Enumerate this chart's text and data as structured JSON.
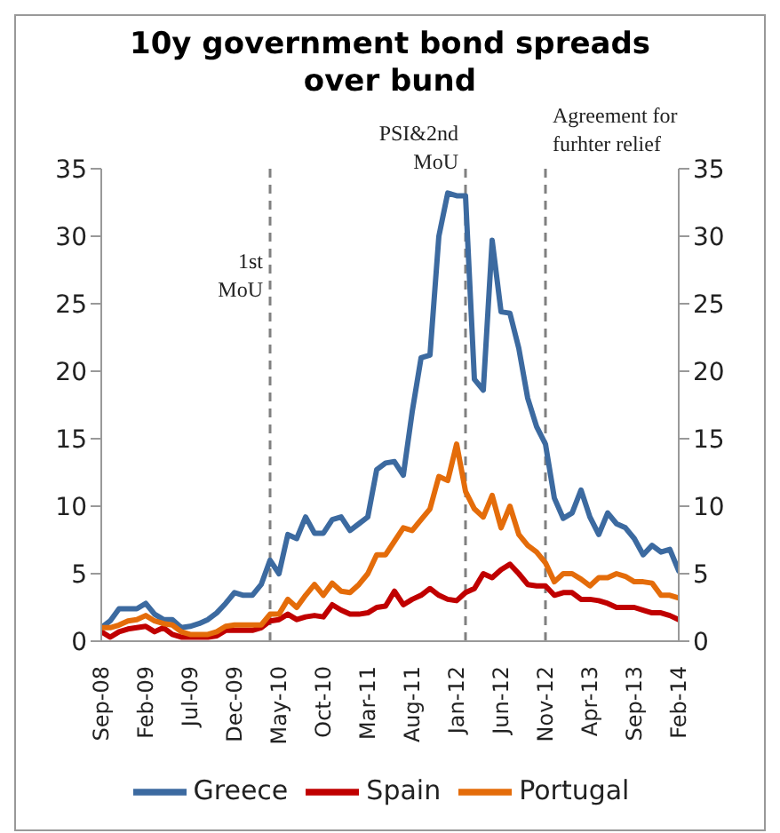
{
  "chart_data": {
    "type": "line",
    "title": "10y government bond spreads over bund",
    "x": [
      "2008-09",
      "2008-10",
      "2008-11",
      "2008-12",
      "2009-01",
      "2009-02",
      "2009-03",
      "2009-04",
      "2009-05",
      "2009-06",
      "2009-07",
      "2009-08",
      "2009-09",
      "2009-10",
      "2009-11",
      "2009-12",
      "2010-01",
      "2010-02",
      "2010-03",
      "2010-04",
      "2010-05",
      "2010-06",
      "2010-07",
      "2010-08",
      "2010-09",
      "2010-10",
      "2010-11",
      "2010-12",
      "2011-01",
      "2011-02",
      "2011-03",
      "2011-04",
      "2011-05",
      "2011-06",
      "2011-07",
      "2011-08",
      "2011-09",
      "2011-10",
      "2011-11",
      "2011-12",
      "2012-01",
      "2012-02",
      "2012-03",
      "2012-04",
      "2012-05",
      "2012-06",
      "2012-07",
      "2012-08",
      "2012-09",
      "2012-10",
      "2012-11",
      "2012-12",
      "2013-01",
      "2013-02",
      "2013-03",
      "2013-04",
      "2013-05",
      "2013-06",
      "2013-07",
      "2013-08",
      "2013-09",
      "2013-10",
      "2013-11",
      "2013-12",
      "2014-01",
      "2014-02"
    ],
    "series": [
      {
        "name": "Greece",
        "color": "#3c6aa0",
        "values": [
          1,
          1.5,
          2.4,
          2.4,
          2.4,
          2.8,
          2,
          1.6,
          1.6,
          1,
          1.1,
          1.3,
          1.6,
          2.1,
          2.8,
          3.6,
          3.4,
          3.4,
          4.2,
          6,
          5,
          7.9,
          7.6,
          9.2,
          8,
          8,
          9,
          9.2,
          8.2,
          8.7,
          9.2,
          12.7,
          13.2,
          13.3,
          12.3,
          17,
          21,
          21.2,
          30,
          33.2,
          33,
          33,
          19.4,
          18.6,
          29.7,
          24.4,
          24.3,
          21.7,
          18,
          15.9,
          14.6,
          10.6,
          9.1,
          9.5,
          11.2,
          9.2,
          7.9,
          9.5,
          8.7,
          8.4,
          7.6,
          6.4,
          7.1,
          6.6,
          6.8,
          5.2
        ]
      },
      {
        "name": "Spain",
        "color": "#c00000",
        "values": [
          0.7,
          0.3,
          0.7,
          0.9,
          1,
          1.1,
          0.7,
          1,
          0.5,
          0.3,
          0.3,
          0.3,
          0.3,
          0.4,
          0.8,
          0.8,
          0.8,
          0.8,
          1,
          1.5,
          1.6,
          2,
          1.6,
          1.8,
          1.9,
          1.8,
          2.7,
          2.3,
          2,
          2,
          2.1,
          2.5,
          2.6,
          3.7,
          2.7,
          3.1,
          3.4,
          3.9,
          3.4,
          3.1,
          3,
          3.6,
          3.9,
          5,
          4.7,
          5.3,
          5.7,
          5,
          4.2,
          4.1,
          4.1,
          3.4,
          3.6,
          3.6,
          3.1,
          3.1,
          3,
          2.8,
          2.5,
          2.5,
          2.5,
          2.3,
          2.1,
          2.1,
          1.9,
          1.6
        ]
      },
      {
        "name": "Portugal",
        "color": "#e46c0a",
        "values": [
          1,
          1,
          1.2,
          1.5,
          1.6,
          1.9,
          1.5,
          1.3,
          1.2,
          0.7,
          0.5,
          0.5,
          0.5,
          0.7,
          1.1,
          1.2,
          1.2,
          1.2,
          1.2,
          2,
          2,
          3.1,
          2.5,
          3.4,
          4.2,
          3.4,
          4.3,
          3.7,
          3.6,
          4.2,
          5,
          6.4,
          6.4,
          7.4,
          8.4,
          8.2,
          9,
          9.8,
          12.2,
          11.9,
          14.6,
          11.1,
          9.8,
          9.2,
          10.8,
          8.4,
          10,
          7.9,
          7.1,
          6.6,
          5.8,
          4.4,
          5,
          5,
          4.6,
          4.1,
          4.7,
          4.7,
          5,
          4.8,
          4.4,
          4.4,
          4.3,
          3.4,
          3.4,
          3.2
        ]
      }
    ],
    "xlim": [
      "2008-09",
      "2014-02"
    ],
    "xticks": [
      {
        "value": "2008-09",
        "label": "Sep-08"
      },
      {
        "value": "2009-02",
        "label": "Feb-09"
      },
      {
        "value": "2009-07",
        "label": "Jul-09"
      },
      {
        "value": "2009-12",
        "label": "Dec-09"
      },
      {
        "value": "2010-05",
        "label": "May-10"
      },
      {
        "value": "2010-10",
        "label": "Oct-10"
      },
      {
        "value": "2011-03",
        "label": "Mar-11"
      },
      {
        "value": "2011-08",
        "label": "Aug-11"
      },
      {
        "value": "2012-01",
        "label": "Jan-12"
      },
      {
        "value": "2012-06",
        "label": "Jun-12"
      },
      {
        "value": "2012-11",
        "label": "Nov-12"
      },
      {
        "value": "2013-04",
        "label": "Apr-13"
      },
      {
        "value": "2013-09",
        "label": "Sep-13"
      },
      {
        "value": "2014-02",
        "label": "Feb-14"
      }
    ],
    "ylim": [
      0,
      35
    ],
    "yticks": [
      0,
      5,
      10,
      15,
      20,
      25,
      30,
      35
    ],
    "y2lim": [
      0,
      35
    ],
    "y2ticks": [
      0,
      5,
      10,
      15,
      20,
      25,
      30,
      35
    ],
    "ref_lines": [
      {
        "axis": "x",
        "value": "2010-04",
        "label": "1st MoU",
        "color": "#808080",
        "line_style": "dashed"
      },
      {
        "axis": "x",
        "value": "2012-02",
        "label": "PSI&2nd MoU",
        "color": "#808080",
        "line_style": "dashed"
      },
      {
        "axis": "x",
        "value": "2012-11",
        "label": "Agreement for furhter relief",
        "color": "#808080",
        "line_style": "dashed"
      }
    ],
    "grid": false,
    "legend": "bottom",
    "marker": "none",
    "line_style": "solid"
  }
}
